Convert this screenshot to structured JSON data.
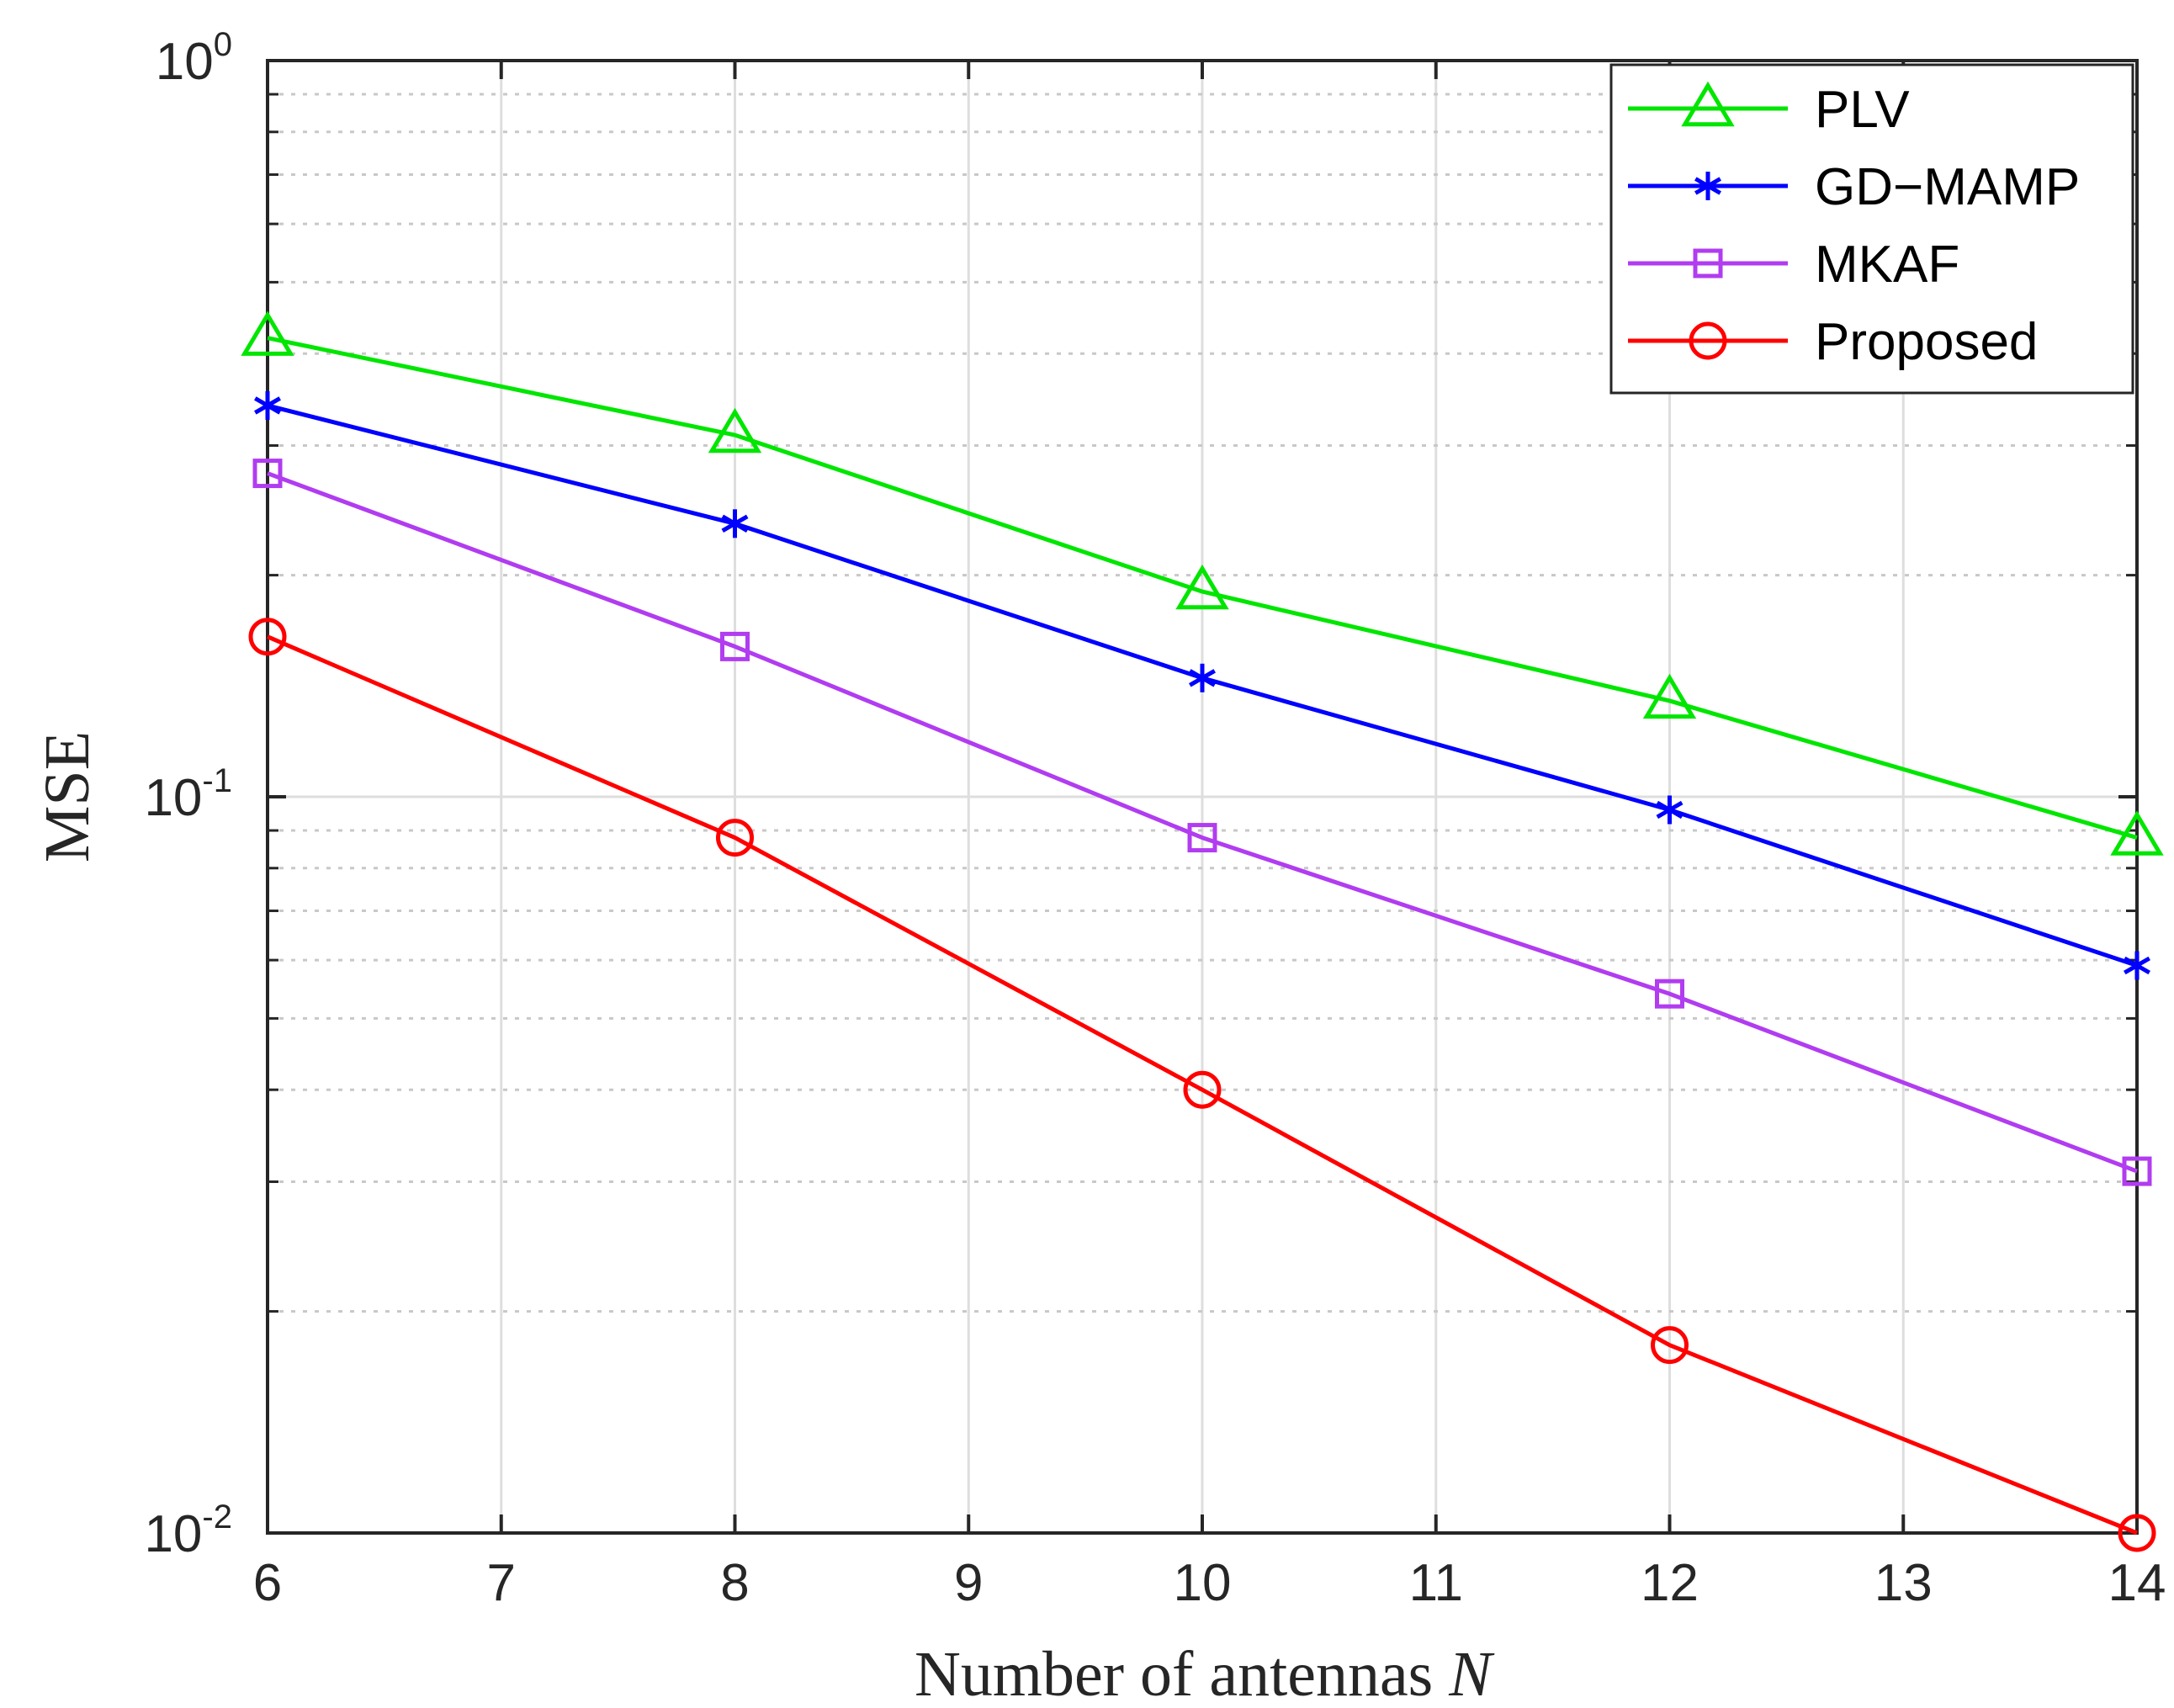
{
  "chart_data": {
    "type": "line",
    "xlabel": "Number of antennas",
    "xlabel_var": "N",
    "ylabel": "MSE",
    "xscale": "linear",
    "yscale": "log",
    "xlim": [
      6,
      14
    ],
    "ylim": [
      0.01,
      1
    ],
    "grid": true,
    "legend_position": "top-right",
    "x_ticks": [
      6,
      7,
      8,
      9,
      10,
      11,
      12,
      13,
      14
    ],
    "y_ticks": [
      {
        "value": 1,
        "base": "10",
        "exp": "0"
      },
      {
        "value": 0.1,
        "base": "10",
        "exp": "-1"
      },
      {
        "value": 0.01,
        "base": "10",
        "exp": "-2"
      }
    ],
    "x": [
      6,
      8,
      10,
      12,
      14
    ],
    "series": [
      {
        "name": "PLV",
        "color": "#00e600",
        "marker": "triangle",
        "values": [
          0.42,
          0.31,
          0.19,
          0.135,
          0.088
        ]
      },
      {
        "name": "GD−MAMP",
        "color": "#0000ff",
        "marker": "star",
        "values": [
          0.34,
          0.235,
          0.145,
          0.096,
          0.059
        ]
      },
      {
        "name": "MKAF",
        "color": "#b13cf0",
        "marker": "square",
        "values": [
          0.275,
          0.16,
          0.088,
          0.054,
          0.031
        ]
      },
      {
        "name": "Proposed",
        "color": "#ff0000",
        "marker": "circle",
        "values": [
          0.165,
          0.088,
          0.04,
          0.018,
          0.01
        ]
      }
    ]
  }
}
